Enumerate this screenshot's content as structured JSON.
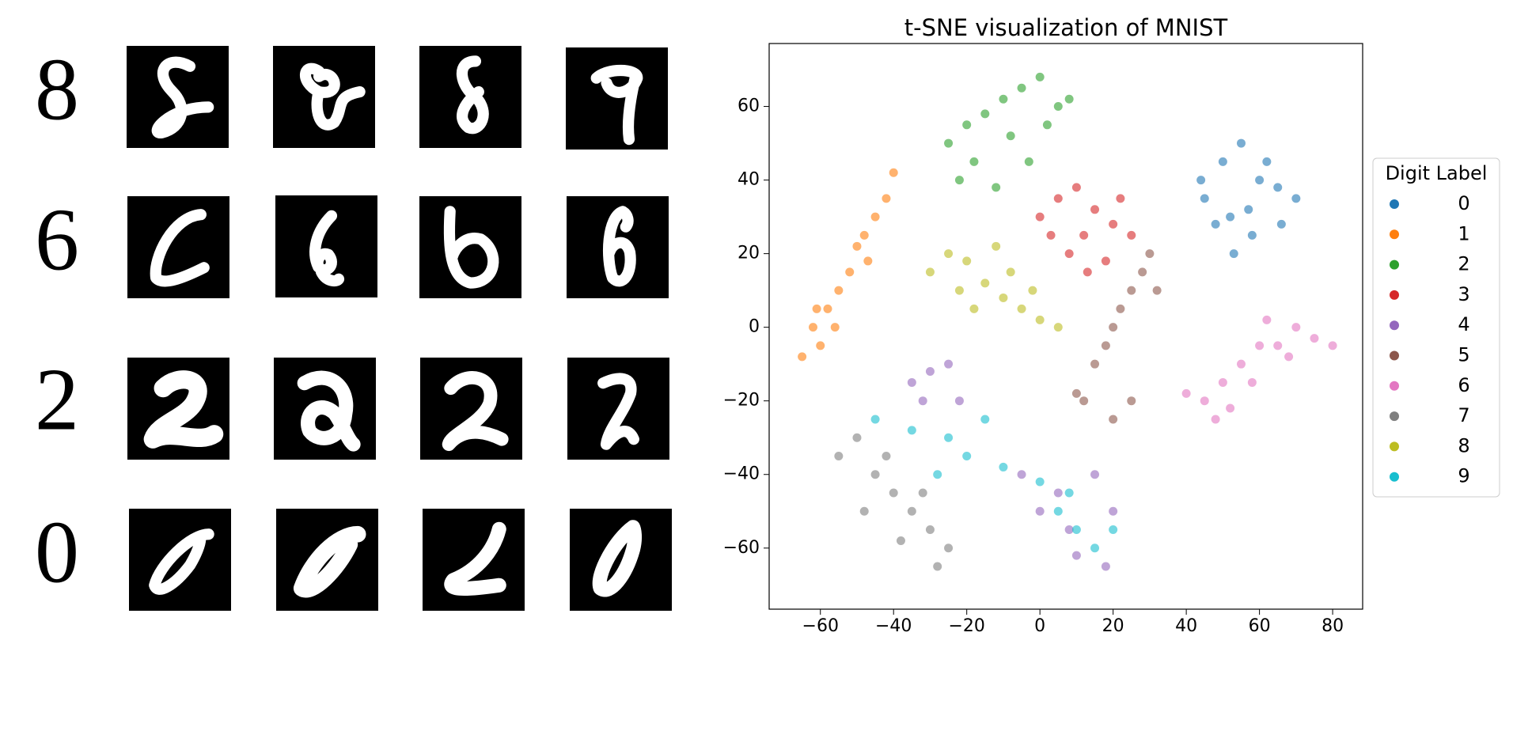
{
  "digit_rows": [
    "8",
    "6",
    "2",
    "0"
  ],
  "chart_data": {
    "type": "scatter",
    "title": "t-SNE visualization of MNIST",
    "legend_title": "Digit Label",
    "legend": "outside-right",
    "xlim": [
      -74,
      88.2
    ],
    "ylim": [
      -76.6,
      77.1
    ],
    "xticks": [
      {
        "value": -60,
        "label": "−60"
      },
      {
        "value": -40,
        "label": "−40"
      },
      {
        "value": -20,
        "label": "−20"
      },
      0,
      20,
      40,
      60,
      80
    ],
    "yticks": [
      {
        "value": -60,
        "label": "−60"
      },
      {
        "value": -40,
        "label": "−40"
      },
      {
        "value": -20,
        "label": "−20"
      },
      0,
      20,
      40,
      60
    ],
    "series": [
      {
        "name": "0",
        "color": "#1f77b4",
        "x": [
          50,
          55,
          60,
          45,
          65,
          52,
          58,
          48,
          70,
          62,
          53,
          44,
          57,
          66
        ],
        "y": [
          45,
          50,
          40,
          35,
          38,
          30,
          25,
          28,
          35,
          45,
          20,
          40,
          32,
          28
        ]
      },
      {
        "name": "1",
        "color": "#ff7f0e",
        "x": [
          -65,
          -62,
          -60,
          -58,
          -55,
          -52,
          -50,
          -48,
          -45,
          -42,
          -40,
          -56,
          -61,
          -47
        ],
        "y": [
          -8,
          0,
          -5,
          5,
          10,
          15,
          22,
          25,
          30,
          35,
          42,
          0,
          5,
          18
        ]
      },
      {
        "name": "2",
        "color": "#2ca02c",
        "x": [
          -25,
          -20,
          -15,
          -10,
          -5,
          0,
          5,
          -18,
          -8,
          2,
          -22,
          -12,
          -3,
          8
        ],
        "y": [
          50,
          55,
          58,
          62,
          65,
          68,
          60,
          45,
          52,
          55,
          40,
          38,
          45,
          62
        ]
      },
      {
        "name": "3",
        "color": "#d62728",
        "x": [
          0,
          5,
          10,
          15,
          20,
          25,
          8,
          13,
          18,
          3,
          22,
          12
        ],
        "y": [
          30,
          35,
          38,
          32,
          28,
          25,
          20,
          15,
          18,
          25,
          35,
          25
        ]
      },
      {
        "name": "4",
        "color": "#9467bd",
        "x": [
          -35,
          -30,
          -25,
          -22,
          -32,
          -5,
          5,
          15,
          20,
          10,
          0,
          18,
          8
        ],
        "y": [
          -15,
          -12,
          -10,
          -20,
          -20,
          -40,
          -45,
          -40,
          -50,
          -62,
          -50,
          -65,
          -55
        ]
      },
      {
        "name": "5",
        "color": "#8c564b",
        "x": [
          30,
          28,
          25,
          22,
          20,
          18,
          15,
          10,
          25,
          32,
          20,
          12
        ],
        "y": [
          20,
          15,
          10,
          5,
          0,
          -5,
          -10,
          -18,
          -20,
          10,
          -25,
          -20
        ]
      },
      {
        "name": "6",
        "color": "#e377c2",
        "x": [
          40,
          45,
          50,
          55,
          60,
          65,
          70,
          75,
          80,
          48,
          58,
          68,
          52,
          62
        ],
        "y": [
          -18,
          -20,
          -15,
          -10,
          -5,
          -5,
          0,
          -3,
          -5,
          -25,
          -15,
          -8,
          -22,
          2
        ]
      },
      {
        "name": "7",
        "color": "#7f7f7f",
        "x": [
          -55,
          -50,
          -45,
          -40,
          -35,
          -30,
          -25,
          -48,
          -38,
          -28,
          -42,
          -32
        ],
        "y": [
          -35,
          -30,
          -40,
          -45,
          -50,
          -55,
          -60,
          -50,
          -58,
          -65,
          -35,
          -45
        ]
      },
      {
        "name": "8",
        "color": "#bcbd22",
        "x": [
          -30,
          -25,
          -20,
          -15,
          -10,
          -5,
          0,
          5,
          -22,
          -12,
          -2,
          -18,
          -8
        ],
        "y": [
          15,
          20,
          18,
          12,
          8,
          5,
          2,
          0,
          10,
          22,
          10,
          5,
          15
        ]
      },
      {
        "name": "9",
        "color": "#17becf",
        "x": [
          -45,
          -35,
          -25,
          -20,
          -15,
          -10,
          5,
          10,
          15,
          20,
          -28,
          8,
          0
        ],
        "y": [
          -25,
          -28,
          -30,
          -35,
          -25,
          -38,
          -50,
          -55,
          -60,
          -55,
          -40,
          -45,
          -42
        ]
      }
    ]
  }
}
